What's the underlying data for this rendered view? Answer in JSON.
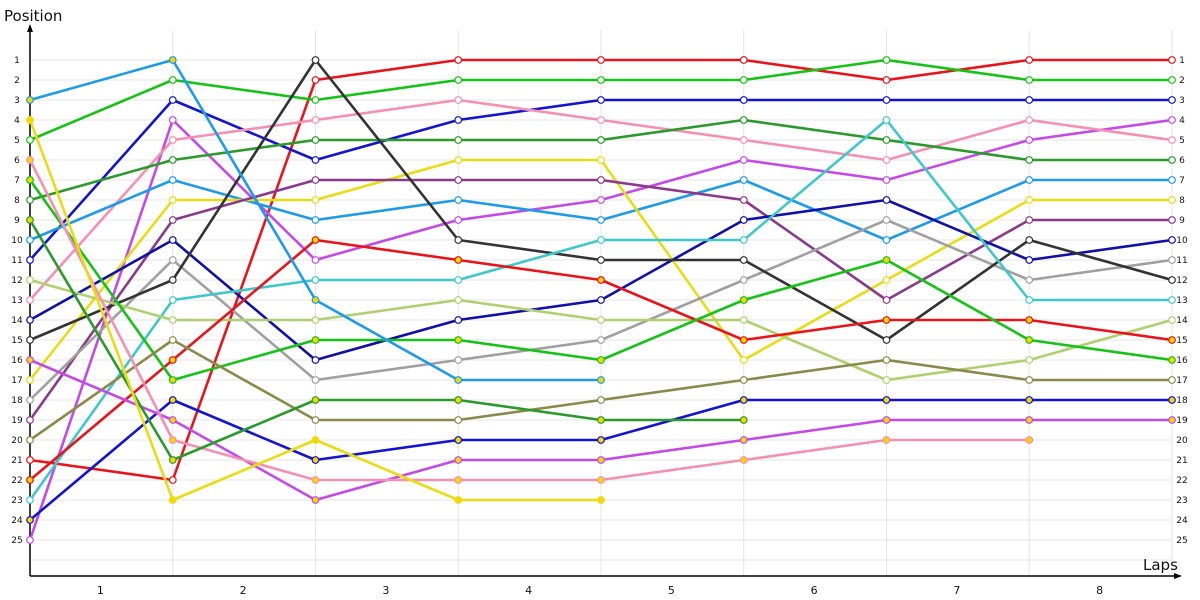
{
  "chart_data": {
    "type": "line",
    "ylabel": "Position",
    "xlabel": "Laps",
    "x": [
      0,
      1,
      2,
      3,
      4,
      5,
      6,
      7,
      8
    ],
    "x_tick_labels": [
      "1",
      "2",
      "3",
      "4",
      "5",
      "6",
      "7",
      "8"
    ],
    "y_tick_labels": [
      "1",
      "2",
      "3",
      "4",
      "5",
      "6",
      "7",
      "8",
      "9",
      "10",
      "11",
      "12",
      "13",
      "14",
      "15",
      "16",
      "17",
      "18",
      "19",
      "20",
      "21",
      "22",
      "23",
      "24",
      "25"
    ],
    "ylim": [
      1,
      25
    ],
    "y_inverted": true,
    "grid": true,
    "series": [
      {
        "color": "#e8141b",
        "marker_fill": "#ffffff",
        "positions": [
          21,
          22,
          2,
          1,
          1,
          1,
          2,
          1,
          1
        ]
      },
      {
        "color": "#17c217",
        "marker_fill": "#ffffff",
        "positions": [
          5,
          2,
          3,
          2,
          2,
          2,
          1,
          2,
          2
        ]
      },
      {
        "color": "#1414d0",
        "marker_fill": "#ffffff",
        "positions": [
          11,
          3,
          6,
          4,
          3,
          3,
          3,
          3,
          3
        ]
      },
      {
        "color": "#c44ae8",
        "marker_fill": "#ffffff",
        "positions": [
          25,
          4,
          11,
          9,
          8,
          6,
          7,
          5,
          4
        ]
      },
      {
        "color": "#f590b0",
        "marker_fill": "#ffffff",
        "positions": [
          13,
          5,
          4,
          3,
          4,
          5,
          6,
          4,
          5
        ]
      },
      {
        "color": "#2a9a2a",
        "marker_fill": "#ffffff",
        "positions": [
          8,
          6,
          5,
          5,
          5,
          4,
          5,
          6,
          6
        ]
      },
      {
        "color": "#1e9be8",
        "marker_fill": "#ffffff",
        "positions": [
          10,
          7,
          9,
          8,
          9,
          7,
          10,
          7,
          7
        ]
      },
      {
        "color": "#e8dc14",
        "marker_fill": "#ffffff",
        "positions": [
          17,
          8,
          8,
          6,
          6,
          16,
          12,
          8,
          8
        ]
      },
      {
        "color": "#8a3a8a",
        "marker_fill": "#ffffff",
        "positions": [
          19,
          9,
          7,
          7,
          7,
          8,
          13,
          9,
          9
        ]
      },
      {
        "color": "#1010a8",
        "marker_fill": "#ffffff",
        "positions": [
          14,
          10,
          16,
          14,
          13,
          9,
          8,
          11,
          10
        ]
      },
      {
        "color": "#a0a0a0",
        "marker_fill": "#ffffff",
        "positions": [
          18,
          11,
          17,
          16,
          15,
          12,
          9,
          12,
          11
        ]
      },
      {
        "color": "#333333",
        "marker_fill": "#ffffff",
        "positions": [
          15,
          12,
          1,
          10,
          11,
          11,
          15,
          10,
          12
        ]
      },
      {
        "color": "#40c8c8",
        "marker_fill": "#ffffff",
        "positions": [
          23,
          13,
          12,
          12,
          10,
          10,
          4,
          13,
          13
        ]
      },
      {
        "color": "#b0d070",
        "marker_fill": "#ffffff",
        "positions": [
          12,
          14,
          14,
          13,
          14,
          14,
          17,
          16,
          14
        ]
      },
      {
        "color": "#e8141b",
        "marker_fill": "#f5d800",
        "positions": [
          22,
          16,
          10,
          11,
          12,
          15,
          14,
          14,
          15
        ]
      },
      {
        "color": "#17c217",
        "marker_fill": "#f5d800",
        "positions": [
          7,
          17,
          15,
          15,
          16,
          13,
          11,
          15,
          16
        ]
      },
      {
        "color": "#8a8a4a",
        "marker_fill": "#ffffff",
        "positions": [
          20,
          15,
          19,
          19,
          18,
          17,
          16,
          17,
          17
        ]
      },
      {
        "color": "#1414d0",
        "marker_fill": "#f5d800",
        "positions": [
          24,
          18,
          21,
          20,
          20,
          18,
          18,
          18,
          18
        ]
      },
      {
        "color": "#c44ae8",
        "marker_fill": "#f5d800",
        "positions": [
          16,
          19,
          23,
          21,
          21,
          20,
          19,
          19,
          19
        ]
      },
      {
        "color": "#f590b0",
        "marker_fill": "#f5d800",
        "positions": [
          6,
          20,
          22,
          22,
          22,
          21,
          20,
          20
        ]
      },
      {
        "color": "#2a9a2a",
        "marker_fill": "#f5d800",
        "positions": [
          9,
          21,
          18,
          18,
          19,
          19
        ]
      },
      {
        "color": "#e8dc14",
        "marker_fill": "#f5d800",
        "positions": [
          4,
          23,
          20,
          23,
          23
        ]
      },
      {
        "color": "#1e9be8",
        "marker_fill": "#f5d800",
        "positions": [
          3,
          1,
          13,
          17,
          17
        ]
      }
    ]
  }
}
